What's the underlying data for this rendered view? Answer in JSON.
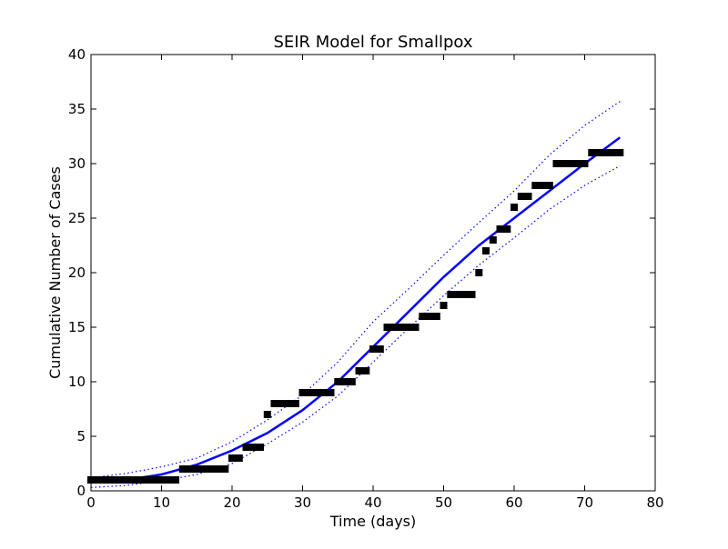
{
  "chart_data": {
    "type": "scatter",
    "title": "SEIR Model for Smallpox",
    "xlabel": "Time (days)",
    "ylabel": "Cumulative Number of Cases",
    "xlim": [
      0,
      80
    ],
    "ylim": [
      0,
      40
    ],
    "xticks": [
      0,
      10,
      20,
      30,
      40,
      50,
      60,
      70,
      80
    ],
    "yticks": [
      0,
      5,
      10,
      15,
      20,
      25,
      30,
      35,
      40
    ],
    "grid": false,
    "legend": "none",
    "colors": {
      "observed": "#000000",
      "model": "#0000ff",
      "bounds": "#0000ff",
      "axes": "#000000"
    },
    "series": [
      {
        "kind": "observed-markers",
        "x": [
          0,
          1,
          2,
          3,
          4,
          5,
          6,
          7,
          8,
          9,
          10,
          11,
          12,
          13,
          14,
          15,
          16,
          17,
          18,
          19,
          20,
          21,
          22,
          23,
          24,
          25,
          26,
          27,
          28,
          29,
          30,
          31,
          32,
          33,
          34,
          35,
          36,
          37,
          38,
          39,
          40,
          41,
          42,
          43,
          44,
          45,
          46,
          47,
          48,
          49,
          50,
          51,
          52,
          53,
          54,
          55,
          56,
          57,
          58,
          59,
          60,
          61,
          62,
          63,
          64,
          65,
          66,
          67,
          68,
          69,
          70,
          71,
          72,
          73,
          74,
          75
        ],
        "y": [
          1,
          1,
          1,
          1,
          1,
          1,
          1,
          1,
          1,
          1,
          1,
          1,
          1,
          2,
          2,
          2,
          2,
          2,
          2,
          2,
          3,
          3,
          4,
          4,
          4,
          7,
          8,
          8,
          8,
          8,
          9,
          9,
          9,
          9,
          9,
          10,
          10,
          10,
          11,
          11,
          13,
          13,
          15,
          15,
          15,
          15,
          15,
          16,
          16,
          16,
          17,
          18,
          18,
          18,
          18,
          20,
          22,
          23,
          24,
          24,
          26,
          27,
          27,
          28,
          28,
          28,
          30,
          30,
          30,
          30,
          30,
          31,
          31,
          31,
          31,
          31
        ]
      },
      {
        "kind": "model-fit",
        "x": [
          0,
          5,
          10,
          15,
          20,
          25,
          30,
          35,
          40,
          45,
          50,
          55,
          60,
          65,
          70,
          75
        ],
        "y": [
          0.8,
          1.0,
          1.5,
          2.4,
          3.7,
          5.3,
          7.4,
          10.0,
          13.2,
          16.4,
          19.6,
          22.5,
          25.0,
          27.5,
          30.0,
          32.4
        ]
      },
      {
        "kind": "upper-bound",
        "x": [
          0,
          5,
          10,
          15,
          20,
          25,
          30,
          35,
          40,
          45,
          50,
          55,
          60,
          65,
          70,
          75
        ],
        "y": [
          1.2,
          1.6,
          2.2,
          3.0,
          4.5,
          6.5,
          8.8,
          11.8,
          15.5,
          18.5,
          21.6,
          24.6,
          27.5,
          30.8,
          33.5,
          35.7
        ]
      },
      {
        "kind": "lower-bound",
        "x": [
          0,
          5,
          10,
          15,
          20,
          25,
          30,
          35,
          40,
          45,
          50,
          55,
          60,
          65,
          70,
          75
        ],
        "y": [
          0.3,
          0.5,
          0.9,
          1.5,
          2.5,
          4.3,
          6.3,
          8.7,
          11.8,
          14.9,
          17.9,
          20.7,
          23.2,
          25.8,
          28.0,
          29.8
        ]
      }
    ]
  }
}
